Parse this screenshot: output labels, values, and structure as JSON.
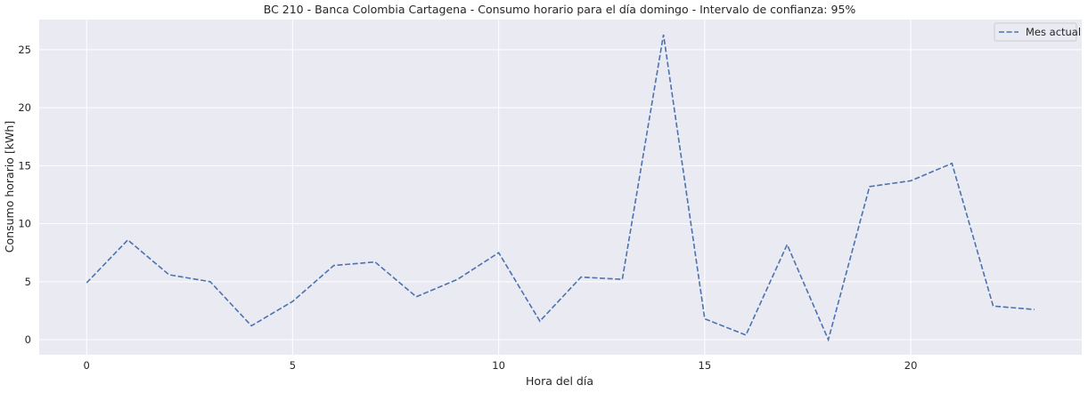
{
  "chart_data": {
    "type": "line",
    "title": "BC 210 - Banca Colombia Cartagena - Consumo horario para el día domingo - Intervalo de confianza: 95%",
    "xlabel": "Hora del día",
    "ylabel": "Consumo horario [kWh]",
    "x": [
      0,
      1,
      2,
      3,
      4,
      5,
      6,
      7,
      8,
      9,
      10,
      11,
      12,
      13,
      14,
      15,
      16,
      17,
      18,
      19,
      20,
      21,
      22,
      23
    ],
    "series": [
      {
        "name": "Mes actual",
        "color": "#4c72b0",
        "line_style": "dashed",
        "values": [
          4.9,
          8.6,
          5.6,
          5.0,
          1.2,
          3.3,
          6.4,
          6.7,
          3.7,
          5.2,
          7.5,
          1.6,
          5.4,
          5.2,
          26.3,
          1.8,
          0.4,
          8.2,
          0.0,
          13.2,
          13.7,
          15.2,
          2.9,
          2.6
        ]
      }
    ],
    "xticks": [
      0,
      5,
      10,
      15,
      20
    ],
    "yticks": [
      0,
      5,
      10,
      15,
      20,
      25
    ],
    "xlim": [
      -1.15,
      24.15
    ],
    "ylim": [
      -1.3,
      27.6
    ],
    "grid": true,
    "legend_position": "top-right",
    "background_color": "#eaeaf2",
    "grid_color": "#ffffff"
  }
}
